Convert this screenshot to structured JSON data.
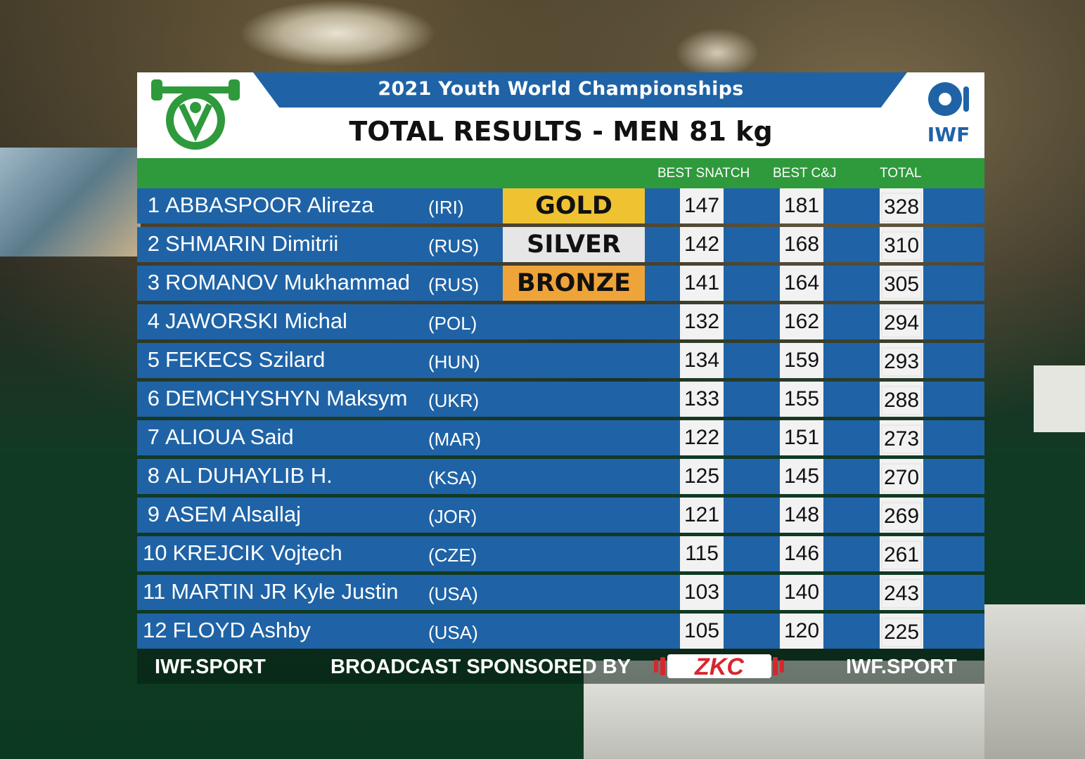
{
  "event": {
    "championship": "2021 Youth World Championships",
    "title": "TOTAL RESULTS - MEN 81 kg",
    "federation": "IWF"
  },
  "columns": {
    "snatch": "BEST SNATCH",
    "cj": "BEST C&J",
    "total": "TOTAL"
  },
  "athletes": [
    {
      "rank": "1",
      "name": "ABBASPOOR Alireza",
      "nation": "(IRI)",
      "medal": "GOLD",
      "snatch": "147",
      "cj": "181",
      "total": "328"
    },
    {
      "rank": "2",
      "name": "SHMARIN Dimitrii",
      "nation": "(RUS)",
      "medal": "SILVER",
      "snatch": "142",
      "cj": "168",
      "total": "310"
    },
    {
      "rank": "3",
      "name": "ROMANOV Mukhammad",
      "nation": "(RUS)",
      "medal": "BRONZE",
      "snatch": "141",
      "cj": "164",
      "total": "305"
    },
    {
      "rank": "4",
      "name": "JAWORSKI Michal",
      "nation": "(POL)",
      "medal": "",
      "snatch": "132",
      "cj": "162",
      "total": "294"
    },
    {
      "rank": "5",
      "name": "FEKECS Szilard",
      "nation": "(HUN)",
      "medal": "",
      "snatch": "134",
      "cj": "159",
      "total": "293"
    },
    {
      "rank": "6",
      "name": "DEMCHYSHYN Maksym",
      "nation": "(UKR)",
      "medal": "",
      "snatch": "133",
      "cj": "155",
      "total": "288"
    },
    {
      "rank": "7",
      "name": "ALIOUA Said",
      "nation": "(MAR)",
      "medal": "",
      "snatch": "122",
      "cj": "151",
      "total": "273"
    },
    {
      "rank": "8",
      "name": "AL DUHAYLIB H.",
      "nation": "(KSA)",
      "medal": "",
      "snatch": "125",
      "cj": "145",
      "total": "270"
    },
    {
      "rank": "9",
      "name": "ASEM Alsallaj",
      "nation": "(JOR)",
      "medal": "",
      "snatch": "121",
      "cj": "148",
      "total": "269"
    },
    {
      "rank": "10",
      "name": "KREJCIK Vojtech",
      "nation": "(CZE)",
      "medal": "",
      "snatch": "115",
      "cj": "146",
      "total": "261"
    },
    {
      "rank": "11",
      "name": "MARTIN JR Kyle Justin",
      "nation": "(USA)",
      "medal": "",
      "snatch": "103",
      "cj": "140",
      "total": "243"
    },
    {
      "rank": "12",
      "name": "FLOYD Ashby",
      "nation": "(USA)",
      "medal": "",
      "snatch": "105",
      "cj": "120",
      "total": "225"
    }
  ],
  "footer": {
    "left": "IWF.SPORT",
    "sponsor": "BROADCAST SPONSORED BY",
    "sponsor_brand": "ZKC",
    "right": "IWF.SPORT"
  },
  "colors": {
    "row_blue": "#1f63a6",
    "header_green": "#2f9a3c",
    "gold": "#efc232",
    "silver": "#e6e6e6",
    "bronze": "#efa43a",
    "zkc_red": "#d8262e"
  }
}
